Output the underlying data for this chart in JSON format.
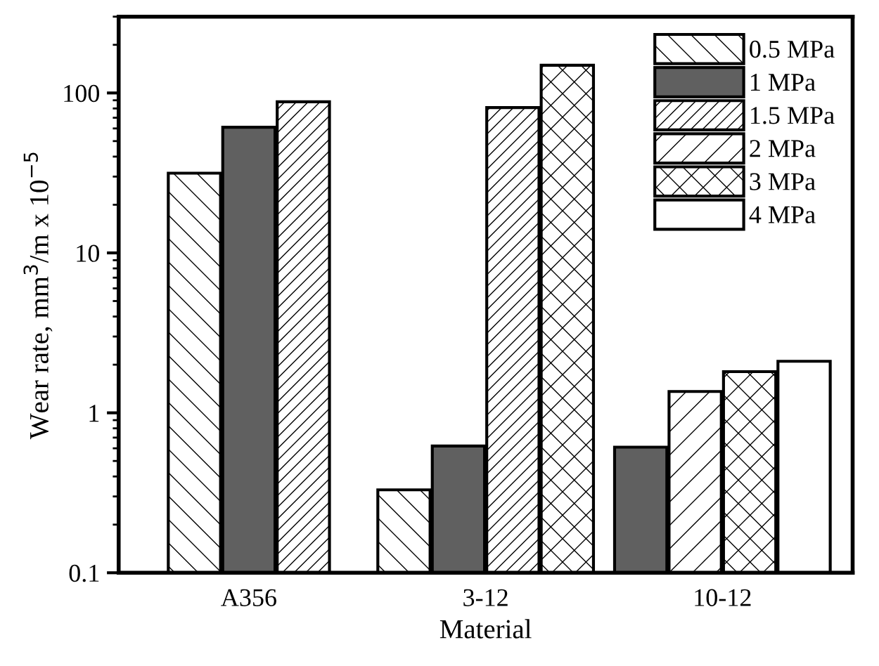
{
  "chart_data": {
    "type": "bar",
    "xlabel": "Material",
    "ylabel": "Wear rate, mm$^{3}$/m x 10$^{−5}$",
    "categories": [
      "A356",
      "3-12",
      "10-12"
    ],
    "series": [
      {
        "name": "0.5 MPa",
        "color": "#ffffff",
        "values": [
          31.5,
          0.33,
          null
        ]
      },
      {
        "name": "1 MPa",
        "color": "#606060",
        "values": [
          61,
          0.62,
          0.61
        ]
      },
      {
        "name": "1.5 MPa",
        "color": "#ffffff",
        "values": [
          88,
          81,
          null
        ]
      },
      {
        "name": "2 MPa",
        "color": "#ffffff",
        "values": [
          null,
          null,
          1.36
        ]
      },
      {
        "name": "3 MPa",
        "color": "#ffffff",
        "values": [
          null,
          149,
          1.81
        ]
      },
      {
        "name": "4 MPa",
        "color": "#ffffff",
        "values": [
          null,
          null,
          2.1
        ]
      }
    ],
    "log": "y",
    "ylim": [
      0.1,
      300
    ],
    "yticks": [
      0.1,
      1,
      10,
      100
    ],
    "grid": false,
    "legend": "top right"
  }
}
